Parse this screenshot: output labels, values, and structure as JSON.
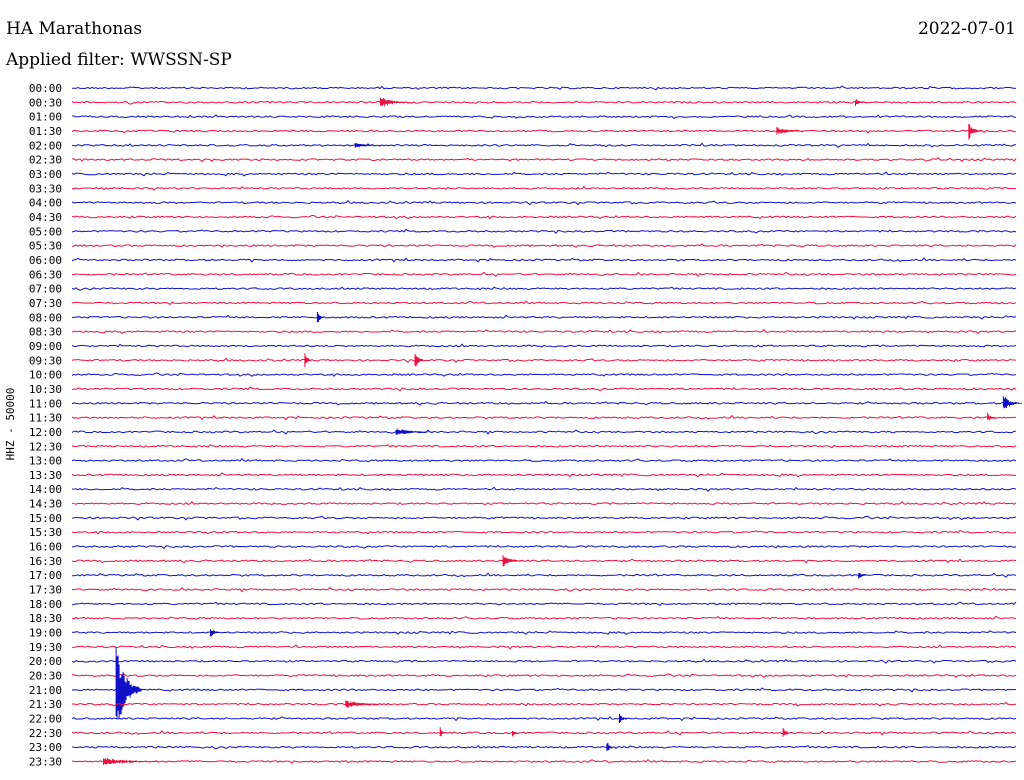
{
  "header": {
    "station": "HA Marathonas",
    "date": "2022-07-01",
    "filter": "Applied filter: WWSSN-SP"
  },
  "chart_data": {
    "type": "line",
    "ylabel": "HHZ - 50000",
    "rows": [
      "00:00",
      "00:30",
      "01:00",
      "01:30",
      "02:00",
      "02:30",
      "03:00",
      "03:30",
      "04:00",
      "04:30",
      "05:00",
      "05:30",
      "06:00",
      "06:30",
      "07:00",
      "07:30",
      "08:00",
      "08:30",
      "09:00",
      "09:30",
      "10:00",
      "10:30",
      "11:00",
      "11:30",
      "12:00",
      "12:30",
      "13:00",
      "13:30",
      "14:00",
      "14:30",
      "15:00",
      "15:30",
      "16:00",
      "16:30",
      "17:00",
      "17:30",
      "18:00",
      "18:30",
      "19:00",
      "19:30",
      "20:00",
      "20:30",
      "21:00",
      "21:30",
      "22:00",
      "22:30",
      "23:00",
      "23:30"
    ],
    "colors": [
      "#1010c8",
      "#ee1040"
    ],
    "x_minutes": [
      0,
      30
    ],
    "events": [
      {
        "row": "00:30",
        "x_min": 9.8,
        "amp": 6,
        "dur": 1.0
      },
      {
        "row": "00:30",
        "x_min": 24.9,
        "amp": 4,
        "dur": 0.4
      },
      {
        "row": "01:30",
        "x_min": 22.4,
        "amp": 4,
        "dur": 1.0
      },
      {
        "row": "01:30",
        "x_min": 28.5,
        "amp": 9,
        "dur": 0.4
      },
      {
        "row": "02:00",
        "x_min": 9.0,
        "amp": 3,
        "dur": 1.0
      },
      {
        "row": "08:00",
        "x_min": 7.8,
        "amp": 9,
        "dur": 0.2
      },
      {
        "row": "09:30",
        "x_min": 7.4,
        "amp": 8,
        "dur": 0.2
      },
      {
        "row": "09:30",
        "x_min": 10.9,
        "amp": 9,
        "dur": 0.3
      },
      {
        "row": "11:00",
        "x_min": 29.6,
        "amp": 9,
        "dur": 0.6
      },
      {
        "row": "11:30",
        "x_min": 29.1,
        "amp": 5,
        "dur": 0.3
      },
      {
        "row": "12:00",
        "x_min": 10.3,
        "amp": 4,
        "dur": 1.2
      },
      {
        "row": "16:30",
        "x_min": 13.7,
        "amp": 6,
        "dur": 0.7
      },
      {
        "row": "17:00",
        "x_min": 25.0,
        "amp": 4,
        "dur": 0.3
      },
      {
        "row": "19:00",
        "x_min": 4.4,
        "amp": 5,
        "dur": 0.4
      },
      {
        "row": "21:00",
        "x_min": 1.4,
        "amp": 45,
        "dur": 0.8
      },
      {
        "row": "21:30",
        "x_min": 8.7,
        "amp": 4,
        "dur": 1.6
      },
      {
        "row": "22:00",
        "x_min": 17.4,
        "amp": 5,
        "dur": 0.3
      },
      {
        "row": "22:30",
        "x_min": 11.7,
        "amp": 6,
        "dur": 0.2
      },
      {
        "row": "22:30",
        "x_min": 14.0,
        "amp": 4,
        "dur": 0.2
      },
      {
        "row": "22:30",
        "x_min": 22.6,
        "amp": 5,
        "dur": 0.3
      },
      {
        "row": "23:00",
        "x_min": 17.0,
        "amp": 8,
        "dur": 0.2
      },
      {
        "row": "23:30",
        "x_min": 1.0,
        "amp": 4,
        "dur": 2.0
      }
    ]
  }
}
